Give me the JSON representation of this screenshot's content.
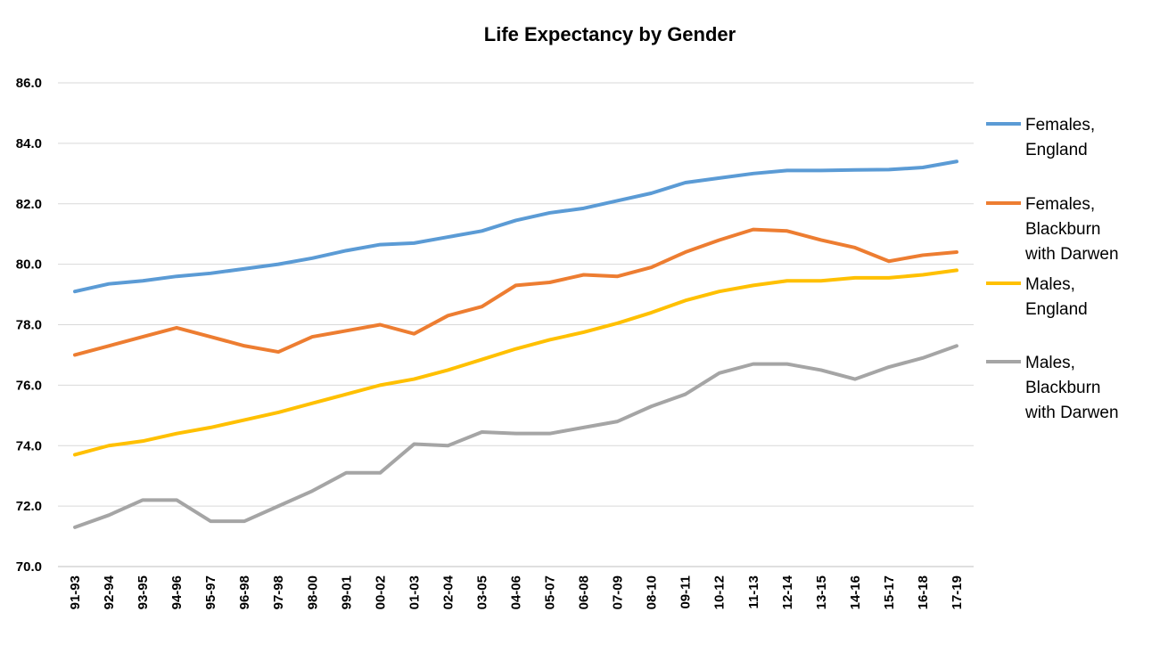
{
  "chart_data": {
    "type": "line",
    "title": "Life Expectancy by Gender",
    "xlabel": "",
    "ylabel": "",
    "ylim": [
      70,
      86
    ],
    "yticks": [
      "70.0",
      "72.0",
      "74.0",
      "76.0",
      "78.0",
      "80.0",
      "82.0",
      "84.0",
      "86.0"
    ],
    "grid": true,
    "legend_position": "right",
    "categories": [
      "91-93",
      "92-94",
      "93-95",
      "94-96",
      "95-97",
      "96-98",
      "97-98",
      "98-00",
      "99-01",
      "00-02",
      "01-03",
      "02-04",
      "03-05",
      "04-06",
      "05-07",
      "06-08",
      "07-09",
      "08-10",
      "09-11",
      "10-12",
      "11-13",
      "12-14",
      "13-15",
      "14-16",
      "15-17",
      "16-18",
      "17-19"
    ],
    "series": [
      {
        "name": "Females, England",
        "legend_lines": [
          "Females,",
          "England"
        ],
        "color": "#5b9bd5",
        "values": [
          79.1,
          79.35,
          79.45,
          79.6,
          79.7,
          79.85,
          80.0,
          80.2,
          80.45,
          80.65,
          80.7,
          80.9,
          81.1,
          81.45,
          81.7,
          81.85,
          82.1,
          82.35,
          82.7,
          82.85,
          83.0,
          83.1,
          83.1,
          83.12,
          83.13,
          83.2,
          83.4
        ]
      },
      {
        "name": "Females, Blackburn with Darwen",
        "legend_lines": [
          "Females,",
          "Blackburn",
          "with Darwen"
        ],
        "color": "#ed7d31",
        "values": [
          77.0,
          77.3,
          77.6,
          77.9,
          77.6,
          77.3,
          77.1,
          77.6,
          77.8,
          78.0,
          77.7,
          78.3,
          78.6,
          79.3,
          79.4,
          79.65,
          79.6,
          79.9,
          80.4,
          80.8,
          81.15,
          81.1,
          80.8,
          80.55,
          80.1,
          80.3,
          80.4
        ]
      },
      {
        "name": "Males, England",
        "legend_lines": [
          "Males,",
          "England"
        ],
        "color": "#ffc000",
        "values": [
          73.7,
          74.0,
          74.15,
          74.4,
          74.6,
          74.85,
          75.1,
          75.4,
          75.7,
          76.0,
          76.2,
          76.5,
          76.85,
          77.2,
          77.5,
          77.75,
          78.05,
          78.4,
          78.8,
          79.1,
          79.3,
          79.45,
          79.45,
          79.55,
          79.55,
          79.65,
          79.8
        ]
      },
      {
        "name": "Males, Blackburn with Darwen",
        "legend_lines": [
          "Males,",
          "Blackburn",
          "with Darwen"
        ],
        "color": "#a5a5a5",
        "values": [
          71.3,
          71.7,
          72.2,
          72.2,
          71.5,
          71.5,
          72.0,
          72.5,
          73.1,
          73.1,
          74.05,
          74.0,
          74.45,
          74.4,
          74.4,
          74.6,
          74.8,
          75.3,
          75.7,
          76.4,
          76.7,
          76.7,
          76.5,
          76.2,
          76.6,
          76.9,
          77.3
        ]
      }
    ]
  }
}
